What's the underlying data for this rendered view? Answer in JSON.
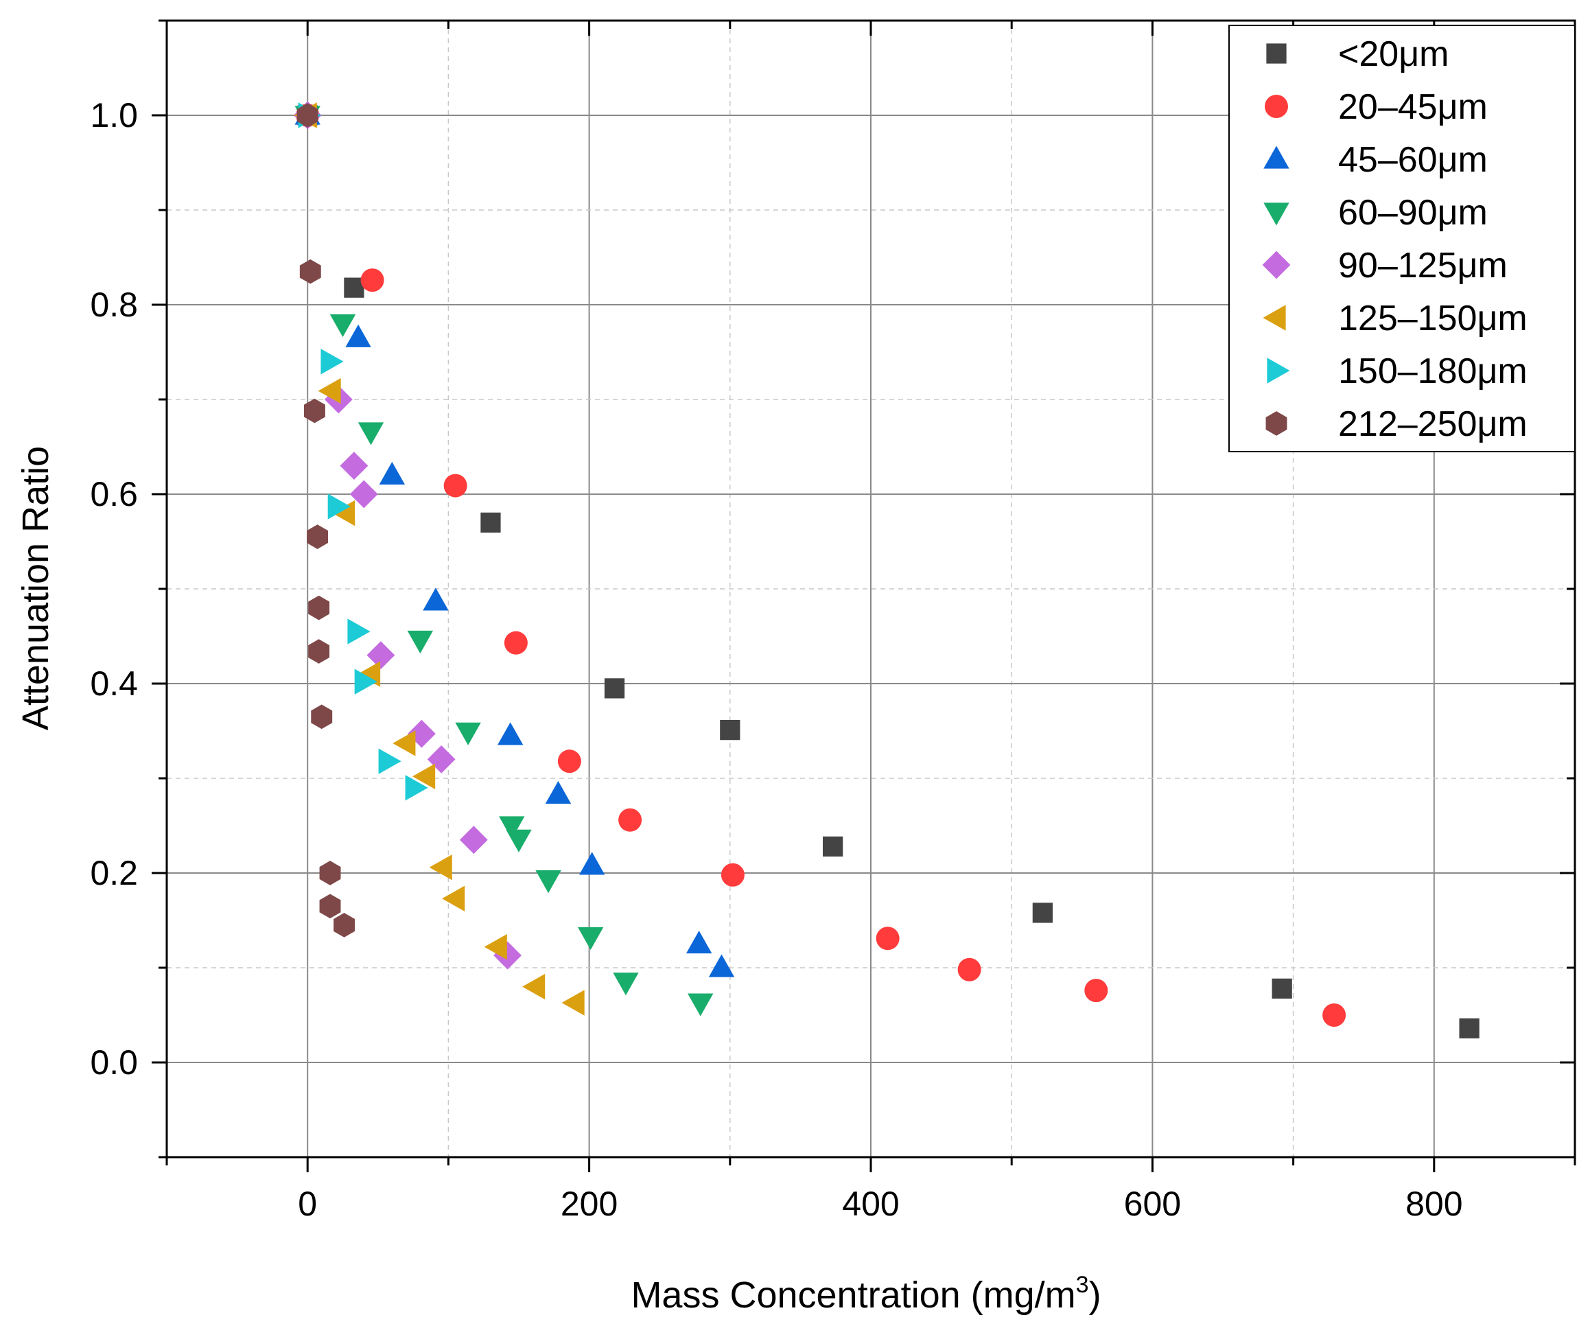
{
  "chart_data": {
    "type": "scatter",
    "title": "",
    "xlabel": "Mass Concentration (mg/m",
    "xlabel_sup": "3",
    "xlabel_end": ")",
    "ylabel": "Attenuation Ratio",
    "xlim": [
      -100,
      900
    ],
    "ylim": [
      -0.1,
      1.1
    ],
    "x_ticks": [
      0,
      200,
      400,
      600,
      800
    ],
    "y_ticks": [
      0.0,
      0.2,
      0.4,
      0.6,
      0.8,
      1.0
    ],
    "x_tick_labels": [
      "0",
      "200",
      "400",
      "600",
      "800"
    ],
    "y_tick_labels": [
      "0.0",
      "0.2",
      "0.4",
      "0.6",
      "0.8",
      "1.0"
    ],
    "grid": true,
    "legend_position": "top-right",
    "series": [
      {
        "name": "<20μm",
        "marker": "square",
        "color": "#444444",
        "x": [
          0,
          33,
          130,
          218,
          300,
          373,
          522,
          692,
          825
        ],
        "y": [
          1.0,
          0.818,
          0.57,
          0.395,
          0.351,
          0.228,
          0.158,
          0.078,
          0.036
        ]
      },
      {
        "name": "20–45μm",
        "marker": "circle",
        "color": "#ff3b3b",
        "x": [
          0,
          46,
          105,
          148,
          186,
          229,
          302,
          412,
          470,
          560,
          729
        ],
        "y": [
          1.0,
          0.826,
          0.609,
          0.443,
          0.318,
          0.256,
          0.198,
          0.131,
          0.098,
          0.076,
          0.05
        ]
      },
      {
        "name": "45–60μm",
        "marker": "triangle-up",
        "color": "#0b66d8",
        "x": [
          0,
          36,
          60,
          91,
          144,
          178,
          202,
          278,
          294
        ],
        "y": [
          1.0,
          0.765,
          0.62,
          0.487,
          0.345,
          0.283,
          0.208,
          0.125,
          0.1
        ]
      },
      {
        "name": "60–90μm",
        "marker": "triangle-down",
        "color": "#19ad6b",
        "x": [
          0,
          25,
          45,
          80,
          114,
          145,
          150,
          171,
          201,
          226,
          279
        ],
        "y": [
          1.0,
          0.78,
          0.666,
          0.446,
          0.349,
          0.25,
          0.236,
          0.193,
          0.133,
          0.085,
          0.063
        ]
      },
      {
        "name": "90–125μm",
        "marker": "diamond",
        "color": "#c46be0",
        "x": [
          0,
          22,
          33,
          40,
          52,
          81,
          95,
          118,
          142
        ],
        "y": [
          1.0,
          0.7,
          0.63,
          0.6,
          0.43,
          0.347,
          0.32,
          0.235,
          0.113
        ]
      },
      {
        "name": "125–150μm",
        "marker": "triangle-left",
        "color": "#dba010",
        "x": [
          0,
          17,
          27,
          45,
          70,
          84,
          96,
          105,
          135,
          162,
          190
        ],
        "y": [
          1.0,
          0.709,
          0.58,
          0.41,
          0.337,
          0.302,
          0.206,
          0.173,
          0.122,
          0.08,
          0.063
        ]
      },
      {
        "name": "150–180μm",
        "marker": "triangle-right",
        "color": "#1ccbd5",
        "x": [
          0,
          16,
          21,
          35,
          40,
          57,
          76
        ],
        "y": [
          1.0,
          0.74,
          0.587,
          0.455,
          0.402,
          0.318,
          0.29
        ]
      },
      {
        "name": "212–250μm",
        "marker": "hexagon",
        "color": "#7e4848",
        "x": [
          0,
          2,
          5,
          7,
          8,
          8,
          10,
          16,
          16,
          26
        ],
        "y": [
          1.0,
          0.835,
          0.688,
          0.555,
          0.48,
          0.434,
          0.365,
          0.2,
          0.165,
          0.145
        ]
      }
    ]
  }
}
